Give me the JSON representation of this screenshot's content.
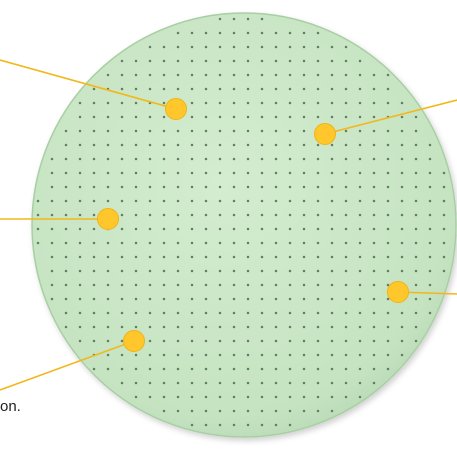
{
  "diagram": {
    "disc": {
      "fill": "#c8e6c4",
      "edge": "#9fc89a",
      "dot_color": "#5f7f60"
    },
    "marker_color": "#ffc72c",
    "leader_color": "#f2b81a",
    "markers": [
      {
        "name": "marker-top-left"
      },
      {
        "name": "marker-top-right"
      },
      {
        "name": "marker-left"
      },
      {
        "name": "marker-right"
      },
      {
        "name": "marker-bottom-left"
      }
    ],
    "partial_label": "on."
  }
}
